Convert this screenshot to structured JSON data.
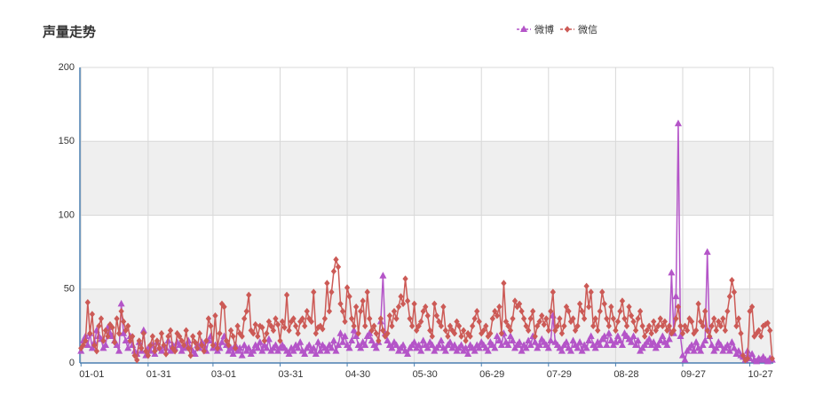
{
  "chart_data": {
    "type": "line",
    "title": "声量走势",
    "categories": [
      "01-01",
      null,
      null,
      null,
      null,
      null,
      null,
      null,
      null,
      null,
      null,
      null,
      null,
      null,
      null,
      null,
      null,
      null,
      null,
      null,
      null,
      null,
      null,
      null,
      null,
      null,
      null,
      null,
      null,
      null,
      "01-31",
      null,
      null,
      null,
      null,
      null,
      null,
      null,
      null,
      null,
      null,
      null,
      null,
      null,
      null,
      null,
      null,
      null,
      null,
      null,
      null,
      null,
      null,
      null,
      null,
      null,
      null,
      null,
      null,
      "03-01",
      null,
      null,
      null,
      null,
      null,
      null,
      null,
      null,
      null,
      null,
      null,
      null,
      null,
      null,
      null,
      null,
      null,
      null,
      null,
      null,
      null,
      null,
      null,
      null,
      null,
      null,
      null,
      null,
      null,
      "03-31",
      null,
      null,
      null,
      null,
      null,
      null,
      null,
      null,
      null,
      null,
      null,
      null,
      null,
      null,
      null,
      null,
      null,
      null,
      null,
      null,
      null,
      null,
      null,
      null,
      null,
      null,
      null,
      null,
      null,
      "04-30",
      null,
      null,
      null,
      null,
      null,
      null,
      null,
      null,
      null,
      null,
      null,
      null,
      null,
      null,
      null,
      null,
      null,
      null,
      null,
      null,
      null,
      null,
      null,
      null,
      null,
      null,
      null,
      null,
      null,
      "05-30",
      null,
      null,
      null,
      null,
      null,
      null,
      null,
      null,
      null,
      null,
      null,
      null,
      null,
      null,
      null,
      null,
      null,
      null,
      null,
      null,
      null,
      null,
      null,
      null,
      null,
      null,
      null,
      null,
      null,
      "06-29",
      null,
      null,
      null,
      null,
      null,
      null,
      null,
      null,
      null,
      null,
      null,
      null,
      null,
      null,
      null,
      null,
      null,
      null,
      null,
      null,
      null,
      null,
      null,
      null,
      null,
      null,
      null,
      null,
      null,
      "07-29",
      null,
      null,
      null,
      null,
      null,
      null,
      null,
      null,
      null,
      null,
      null,
      null,
      null,
      null,
      null,
      null,
      null,
      null,
      null,
      null,
      null,
      null,
      null,
      null,
      null,
      null,
      null,
      null,
      null,
      "08-28",
      null,
      null,
      null,
      null,
      null,
      null,
      null,
      null,
      null,
      null,
      null,
      null,
      null,
      null,
      null,
      null,
      null,
      null,
      null,
      null,
      null,
      null,
      null,
      null,
      null,
      null,
      null,
      null,
      null,
      "09-27",
      null,
      null,
      null,
      null,
      null,
      null,
      null,
      null,
      null,
      null,
      null,
      null,
      null,
      null,
      null,
      null,
      null,
      null,
      null,
      null,
      null,
      null,
      null,
      null,
      null,
      null,
      null,
      null,
      null,
      "10-27",
      null,
      null,
      null,
      null,
      null,
      null,
      null,
      null,
      null,
      null
    ],
    "series": [
      {
        "name": "微博",
        "color": "#b455c8",
        "marker": "triangle",
        "values": [
          8,
          15,
          18,
          12,
          20,
          10,
          14,
          22,
          18,
          16,
          10,
          12,
          24,
          20,
          18,
          15,
          12,
          8,
          40,
          20,
          15,
          10,
          18,
          12,
          8,
          6,
          14,
          8,
          22,
          5,
          10,
          8,
          12,
          6,
          14,
          10,
          8,
          12,
          10,
          15,
          8,
          12,
          10,
          14,
          12,
          8,
          10,
          12,
          15,
          10,
          8,
          6,
          12,
          10,
          14,
          12,
          8,
          15,
          18,
          10,
          12,
          8,
          10,
          14,
          18,
          12,
          8,
          10,
          6,
          12,
          8,
          10,
          5,
          12,
          8,
          10,
          6,
          8,
          12,
          10,
          14,
          8,
          12,
          10,
          16,
          8,
          10,
          12,
          8,
          10,
          12,
          10,
          8,
          6,
          10,
          8,
          12,
          10,
          14,
          8,
          6,
          10,
          12,
          8,
          10,
          6,
          14,
          8,
          12,
          10,
          8,
          12,
          10,
          15,
          8,
          12,
          20,
          14,
          18,
          12,
          10,
          15,
          22,
          18,
          12,
          10,
          14,
          12,
          18,
          20,
          15,
          12,
          10,
          14,
          28,
          59,
          20,
          15,
          12,
          10,
          14,
          12,
          8,
          10,
          12,
          8,
          6,
          10,
          12,
          14,
          10,
          12,
          8,
          15,
          12,
          10,
          14,
          12,
          8,
          10,
          12,
          15,
          10,
          8,
          12,
          14,
          10,
          12,
          8,
          10,
          12,
          8,
          10,
          6,
          12,
          10,
          8,
          12,
          10,
          14,
          12,
          10,
          8,
          14,
          12,
          10,
          18,
          15,
          12,
          20,
          14,
          12,
          18,
          15,
          10,
          12,
          14,
          8,
          12,
          10,
          15,
          12,
          18,
          14,
          10,
          12,
          16,
          14,
          12,
          10,
          15,
          32,
          14,
          12,
          10,
          8,
          12,
          14,
          10,
          8,
          15,
          12,
          10,
          14,
          8,
          12,
          10,
          15,
          18,
          12,
          10,
          14,
          12,
          16,
          18,
          12,
          20,
          15,
          12,
          14,
          18,
          15,
          12,
          20,
          18,
          16,
          14,
          18,
          12,
          15,
          8,
          10,
          12,
          14,
          16,
          12,
          14,
          10,
          12,
          15,
          18,
          14,
          12,
          16,
          61,
          20,
          45,
          162,
          18,
          5,
          2,
          8,
          10,
          12,
          8,
          14,
          10,
          8,
          12,
          15,
          75,
          18,
          12,
          8,
          10,
          14,
          12,
          8,
          10,
          12,
          8,
          14,
          10,
          6,
          8,
          5,
          4,
          2,
          8,
          3,
          6,
          2,
          1,
          3,
          2,
          4,
          2,
          1,
          3,
          2
        ]
      },
      {
        "name": "微信",
        "color": "#cc5a56",
        "marker": "diamond",
        "values": [
          10,
          12,
          15,
          41,
          20,
          33,
          12,
          8,
          25,
          30,
          15,
          22,
          18,
          26,
          24,
          14,
          30,
          20,
          35,
          28,
          22,
          25,
          15,
          18,
          5,
          2,
          15,
          10,
          20,
          8,
          5,
          12,
          18,
          8,
          15,
          10,
          20,
          12,
          6,
          18,
          22,
          10,
          8,
          20,
          18,
          15,
          12,
          22,
          10,
          5,
          18,
          14,
          10,
          20,
          12,
          8,
          15,
          30,
          25,
          12,
          32,
          10,
          20,
          40,
          38,
          15,
          12,
          22,
          18,
          10,
          25,
          20,
          18,
          30,
          35,
          46,
          22,
          20,
          26,
          18,
          25,
          24,
          15,
          20,
          28,
          25,
          22,
          30,
          26,
          15,
          28,
          24,
          46,
          22,
          28,
          30,
          25,
          20,
          28,
          30,
          25,
          35,
          30,
          28,
          48,
          20,
          24,
          25,
          23,
          30,
          54,
          35,
          48,
          62,
          70,
          65,
          40,
          35,
          28,
          51,
          45,
          30,
          25,
          38,
          20,
          35,
          42,
          25,
          48,
          30,
          22,
          25,
          20,
          15,
          30,
          22,
          18,
          20,
          32,
          25,
          35,
          30,
          38,
          45,
          40,
          57,
          42,
          30,
          25,
          40,
          22,
          25,
          28,
          35,
          38,
          32,
          22,
          18,
          40,
          32,
          28,
          25,
          38,
          22,
          18,
          25,
          22,
          20,
          28,
          25,
          18,
          22,
          15,
          20,
          18,
          25,
          30,
          35,
          28,
          20,
          22,
          25,
          18,
          20,
          30,
          35,
          32,
          38,
          20,
          54,
          28,
          25,
          22,
          30,
          42,
          38,
          40,
          35,
          30,
          25,
          22,
          30,
          35,
          18,
          25,
          28,
          32,
          26,
          30,
          22,
          35,
          48,
          22,
          25,
          30,
          20,
          25,
          38,
          35,
          28,
          30,
          22,
          25,
          40,
          35,
          30,
          52,
          38,
          48,
          25,
          30,
          22,
          35,
          48,
          40,
          30,
          25,
          38,
          30,
          22,
          28,
          35,
          42,
          30,
          25,
          38,
          32,
          28,
          22,
          30,
          35,
          25,
          18,
          22,
          25,
          20,
          28,
          22,
          25,
          30,
          25,
          28,
          22,
          25,
          20,
          22,
          30,
          38,
          25,
          20,
          25,
          22,
          30,
          28,
          20,
          22,
          40,
          28,
          25,
          35,
          22,
          18,
          25,
          30,
          22,
          28,
          25,
          30,
          22,
          35,
          45,
          56,
          48,
          25,
          30,
          20,
          5,
          2,
          3,
          35,
          38,
          18,
          20,
          22,
          18,
          25,
          26,
          27,
          22,
          3
        ]
      }
    ],
    "ylim": [
      0,
      200
    ],
    "yticks": [
      0,
      50,
      100,
      150,
      200
    ],
    "grid": true,
    "legend": "top"
  }
}
